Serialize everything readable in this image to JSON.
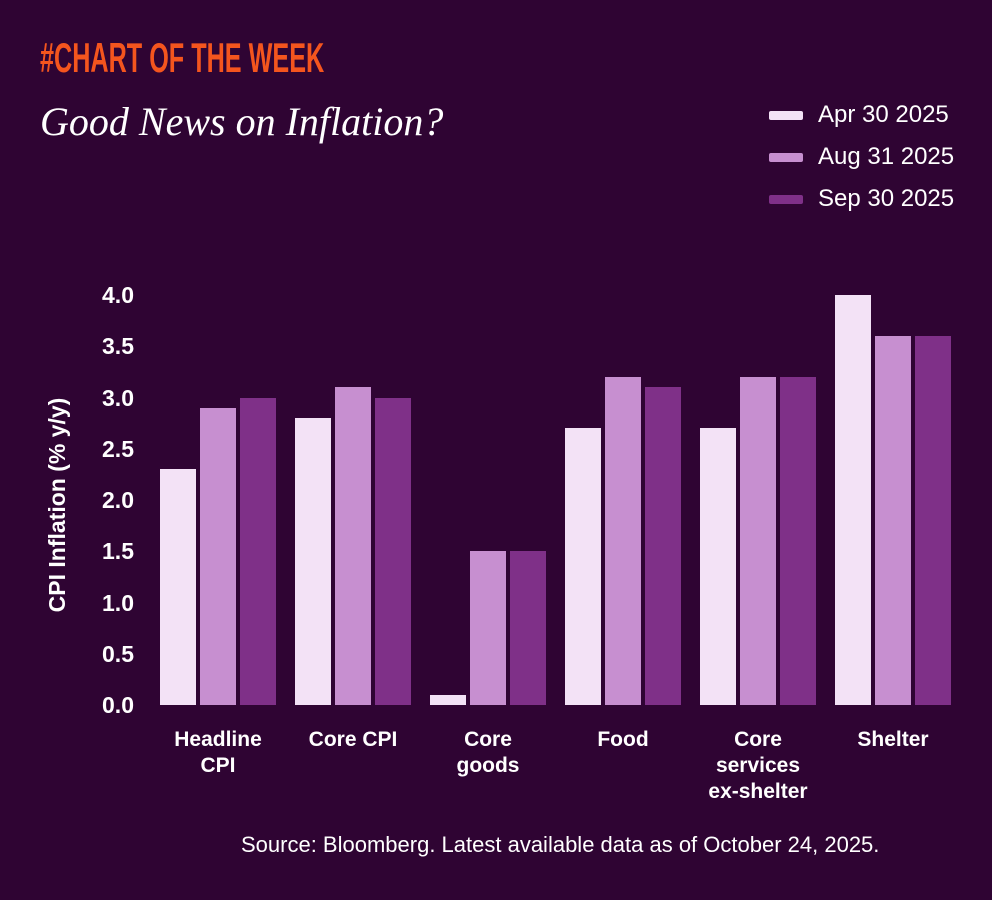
{
  "header": {
    "tag": "#CHART OF THE WEEK",
    "title": "Good News on Inflation?"
  },
  "colors": {
    "background": "#2f0433",
    "accent_orange": "#f4551e",
    "text": "#ffffff",
    "series": [
      "#f3e2f6",
      "#c78fd0",
      "#7f3088"
    ]
  },
  "legend": [
    {
      "label": "Apr 30 2025",
      "color": "#f3e2f6"
    },
    {
      "label": "Aug 31 2025",
      "color": "#c78fd0"
    },
    {
      "label": "Sep 30 2025",
      "color": "#7f3088"
    }
  ],
  "chart_data": {
    "type": "bar",
    "title": "Good News on Inflation?",
    "xlabel": "",
    "ylabel": "CPI Inflation (% y/y)",
    "ylim": [
      0,
      4.0
    ],
    "ytick_step": 0.5,
    "yticks": [
      "0.0",
      "0.5",
      "1.0",
      "1.5",
      "2.0",
      "2.5",
      "3.0",
      "3.5",
      "4.0"
    ],
    "grid": false,
    "legend_position": "top-right",
    "categories": [
      "Headline\nCPI",
      "Core CPI",
      "Core\ngoods",
      "Food",
      "Core\nservices\nex-shelter",
      "Shelter"
    ],
    "series": [
      {
        "name": "Apr 30 2025",
        "color": "#f3e2f6",
        "values": [
          2.3,
          2.8,
          0.1,
          2.7,
          2.7,
          4.0
        ]
      },
      {
        "name": "Aug 31 2025",
        "color": "#c78fd0",
        "values": [
          2.9,
          3.1,
          1.5,
          3.2,
          3.2,
          3.6
        ]
      },
      {
        "name": "Sep 30 2025",
        "color": "#7f3088",
        "values": [
          3.0,
          3.0,
          1.5,
          3.1,
          3.2,
          3.6
        ]
      }
    ]
  },
  "source": "Source: Bloomberg. Latest available data as of October 24, 2025."
}
